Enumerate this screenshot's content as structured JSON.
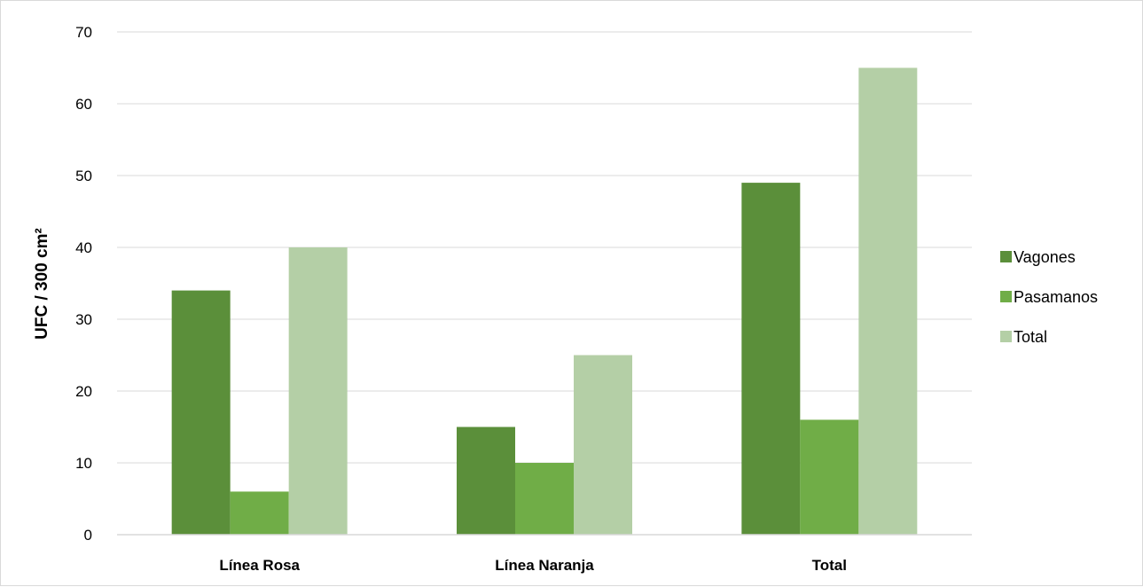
{
  "chart_data": {
    "type": "bar",
    "title": "",
    "xlabel": "",
    "ylabel": "UFC / 300 cm²",
    "ylim": [
      0,
      70
    ],
    "yticks": [
      0,
      10,
      20,
      30,
      40,
      50,
      60,
      70
    ],
    "grid": true,
    "legend_position": "right",
    "categories": [
      "Línea Rosa",
      "Línea Naranja",
      "Total"
    ],
    "series": [
      {
        "name": "Vagones",
        "values": [
          34,
          15,
          49
        ],
        "color": "#5b8f3a"
      },
      {
        "name": "Pasamanos",
        "values": [
          6,
          10,
          16
        ],
        "color": "#70ad47"
      },
      {
        "name": "Total",
        "values": [
          40,
          25,
          65
        ],
        "color": "#b4cfa6"
      }
    ]
  }
}
